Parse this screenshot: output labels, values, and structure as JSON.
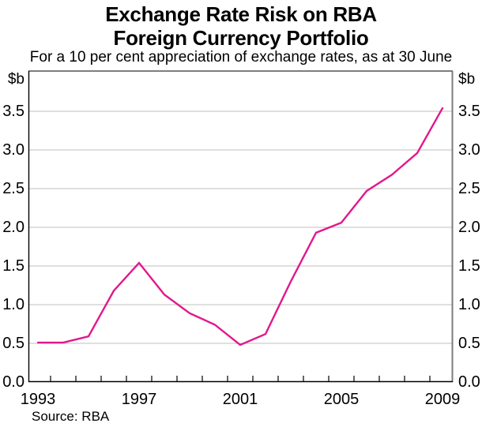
{
  "header": {
    "title_line1": "Exchange Rate Risk on RBA",
    "title_line2": "Foreign Currency Portfolio",
    "subtitle": "For a 10 per cent appreciation of exchange rates, as at 30 June"
  },
  "footer": {
    "source": "Source: RBA"
  },
  "colors": {
    "line": "#e2188c",
    "gridline": "#cccccc",
    "frame_gray": "#7d7d7d",
    "axis_black": "#000000",
    "background": "#ffffff"
  },
  "chart_data": {
    "type": "line",
    "title": "Exchange Rate Risk on RBA Foreign Currency Portfolio",
    "subtitle": "For a 10 per cent appreciation of exchange rates, as at 30 June",
    "xlabel": "",
    "ylabel": "$b",
    "unit": "$b",
    "x": [
      1993,
      1994,
      1995,
      1996,
      1997,
      1998,
      1999,
      2000,
      2001,
      2002,
      2003,
      2004,
      2005,
      2006,
      2007,
      2008,
      2009
    ],
    "series": [
      {
        "name": "Exchange rate risk on RBA foreign currency portfolio",
        "values": [
          0.51,
          0.51,
          0.59,
          1.18,
          1.54,
          1.13,
          0.89,
          0.74,
          0.48,
          0.62,
          1.3,
          1.93,
          2.06,
          2.47,
          2.68,
          2.96,
          3.54
        ]
      }
    ],
    "ylim": [
      0.0,
      4.0
    ],
    "xlim": [
      1992.6,
      2009.5
    ],
    "yticks": [
      0.0,
      0.5,
      1.0,
      1.5,
      2.0,
      2.5,
      3.0,
      3.5
    ],
    "y_tick_labels": [
      "0.0",
      "0.5",
      "1.0",
      "1.5",
      "2.0",
      "2.5",
      "3.0",
      "3.5"
    ],
    "y_axis_sides": "both",
    "x_tick_labels": [
      "1993",
      "1997",
      "2001",
      "2005",
      "2009"
    ],
    "x_minor_ticks": "every year, at mid-year positions along bottom axis",
    "grid": true,
    "legend_position": "none"
  }
}
